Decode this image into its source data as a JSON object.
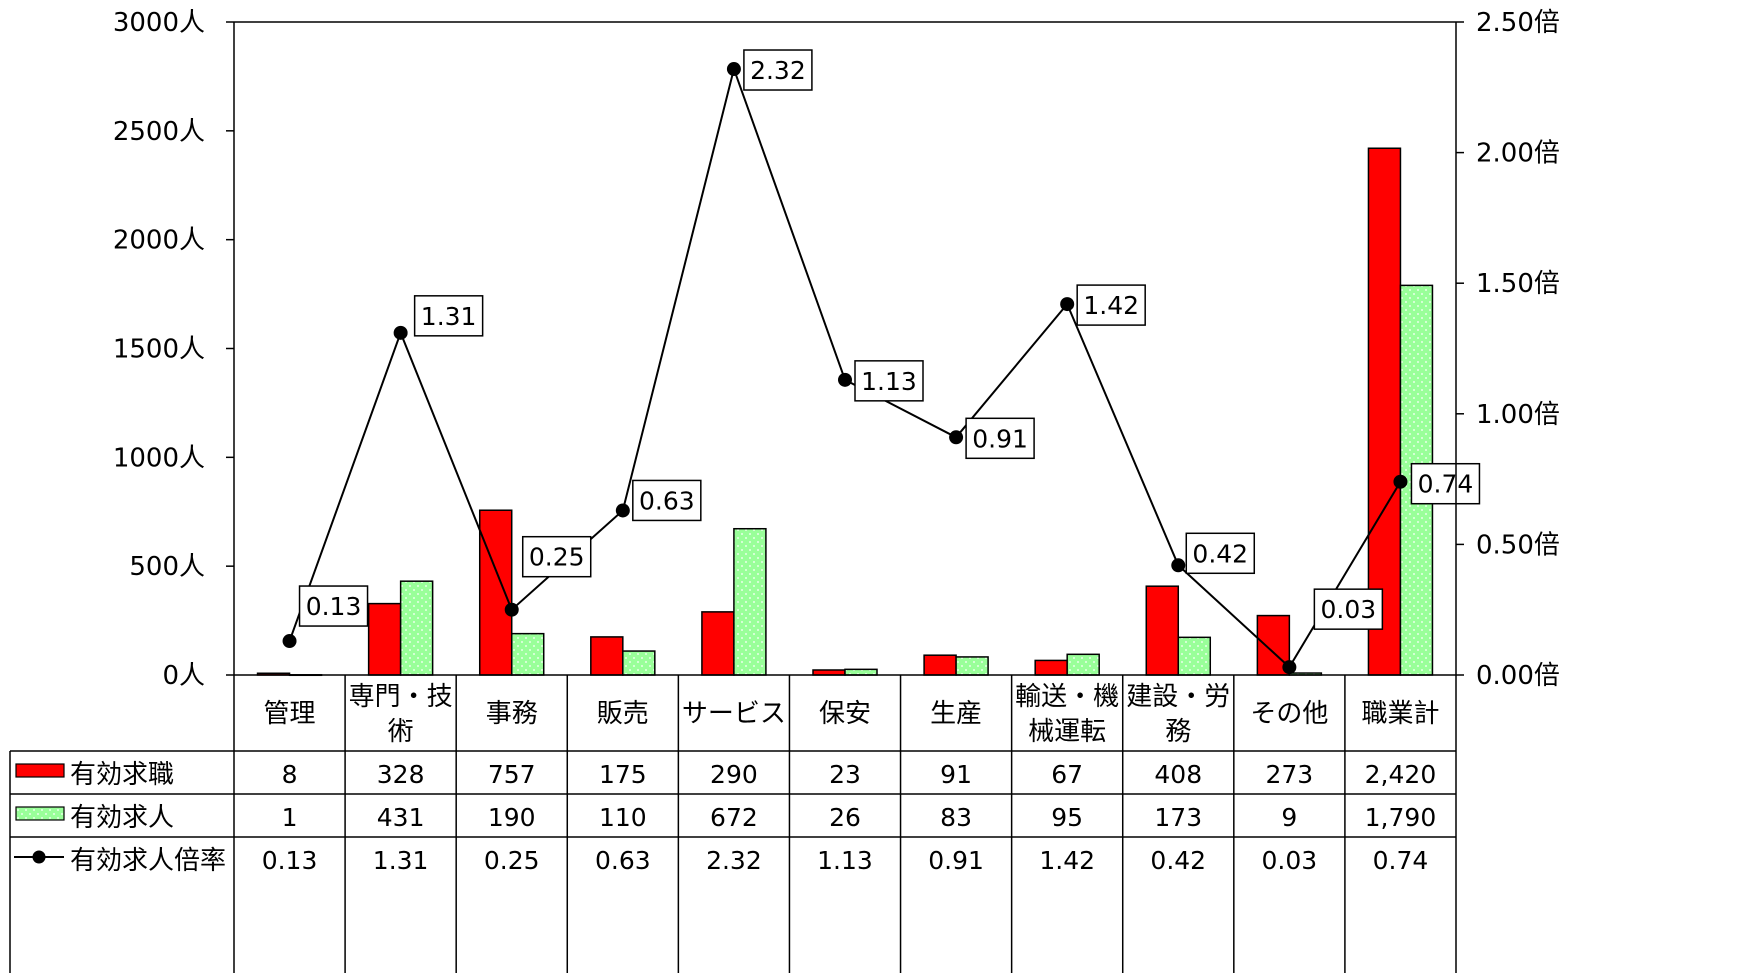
{
  "chart_data": {
    "type": "bar",
    "categories": [
      [
        "管理"
      ],
      [
        "専門・技",
        "術"
      ],
      [
        "事務"
      ],
      [
        "販売"
      ],
      [
        "サービス"
      ],
      [
        "保安"
      ],
      [
        "生産"
      ],
      [
        "輸送・機",
        "械運転"
      ],
      [
        "建設・労",
        "務"
      ],
      [
        "その他"
      ],
      [
        "職業計"
      ]
    ],
    "series": [
      {
        "name": "有効求職",
        "kind": "bar",
        "axis": "left",
        "color": "#ff0000",
        "values": [
          8,
          328,
          757,
          175,
          290,
          23,
          91,
          67,
          408,
          273,
          2420
        ],
        "table_values": [
          "8",
          "328",
          "757",
          "175",
          "290",
          "23",
          "91",
          "67",
          "408",
          "273",
          "2,420"
        ]
      },
      {
        "name": "有効求人",
        "kind": "bar",
        "axis": "left",
        "color": "#99ff99",
        "values": [
          1,
          431,
          190,
          110,
          672,
          26,
          83,
          95,
          173,
          9,
          1790
        ],
        "table_values": [
          "1",
          "431",
          "190",
          "110",
          "672",
          "26",
          "83",
          "95",
          "173",
          "9",
          "1,790"
        ]
      },
      {
        "name": "有効求人倍率",
        "kind": "line",
        "axis": "right",
        "color": "#000000",
        "values": [
          0.13,
          1.31,
          0.25,
          0.63,
          2.32,
          1.13,
          0.91,
          1.42,
          0.42,
          0.03,
          0.74
        ],
        "table_values": [
          "0.13",
          "1.31",
          "0.25",
          "0.63",
          "2.32",
          "1.13",
          "0.91",
          "1.42",
          "0.42",
          "0.03",
          "0.74"
        ]
      }
    ],
    "y_left": {
      "range": [
        0,
        3000
      ],
      "ticks": [
        0,
        500,
        1000,
        1500,
        2000,
        2500,
        3000
      ],
      "tick_labels": [
        "0人",
        "500人",
        "1000人",
        "1500人",
        "2000人",
        "2500人",
        "3000人"
      ]
    },
    "y_right": {
      "range": [
        0,
        2.5
      ],
      "ticks": [
        0,
        0.5,
        1.0,
        1.5,
        2.0,
        2.5
      ],
      "tick_labels": [
        "0.00倍",
        "0.50倍",
        "1.00倍",
        "1.50倍",
        "2.00倍",
        "2.50倍"
      ]
    },
    "grid": false,
    "legend_placement": "data-table-left",
    "title": "",
    "xlabel": "",
    "ylabel": ""
  }
}
